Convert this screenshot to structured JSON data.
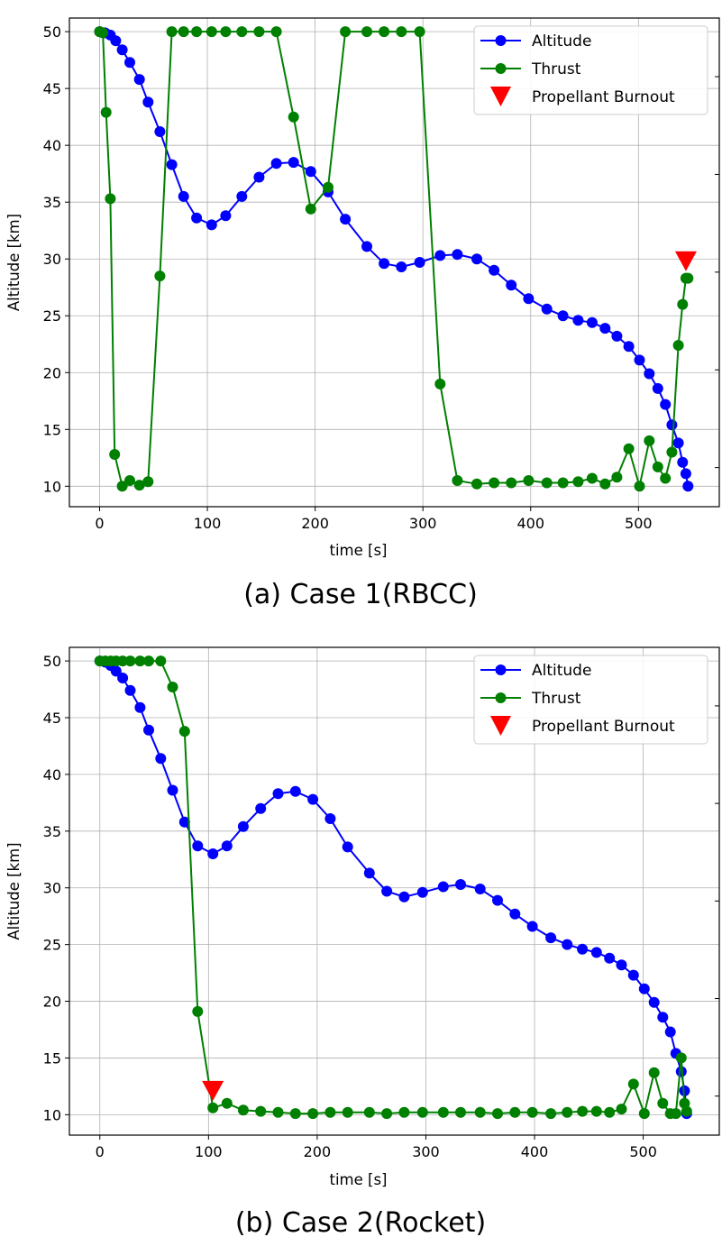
{
  "chart_data": [
    {
      "type": "line",
      "caption": "(a) Case 1(RBCC)",
      "xlabel": "time [s]",
      "ylabel": "Altitude [km]",
      "xlim": [
        -28,
        575
      ],
      "ylim": [
        8.2,
        51.2
      ],
      "xticks": [
        0,
        100,
        200,
        300,
        400,
        500
      ],
      "yticks": [
        10,
        15,
        20,
        25,
        30,
        35,
        40,
        45,
        50
      ],
      "grid": true,
      "legend_position": "top-right",
      "series": [
        {
          "name": "Altitude",
          "color": "#0000ff",
          "x": [
            0,
            5,
            10,
            15,
            21,
            28,
            37,
            45,
            56,
            67,
            78,
            90,
            104,
            117,
            132,
            148,
            164,
            180,
            196,
            212,
            228,
            248,
            264,
            280,
            297,
            316,
            332,
            350,
            366,
            382,
            398,
            415,
            430,
            444,
            457,
            469,
            480,
            491,
            501,
            510,
            518,
            525,
            531,
            537,
            541,
            544,
            546
          ],
          "y": [
            50,
            49.9,
            49.7,
            49.2,
            48.4,
            47.3,
            45.8,
            43.8,
            41.2,
            38.3,
            35.5,
            33.6,
            33.0,
            33.8,
            35.5,
            37.2,
            38.4,
            38.5,
            37.7,
            35.9,
            33.5,
            31.1,
            29.6,
            29.3,
            29.7,
            30.3,
            30.4,
            30.0,
            29.0,
            27.7,
            26.5,
            25.6,
            25.0,
            24.6,
            24.4,
            23.9,
            23.2,
            22.3,
            21.1,
            19.9,
            18.6,
            17.2,
            15.4,
            13.8,
            12.1,
            11.1,
            10.0
          ]
        },
        {
          "name": "Thrust",
          "color": "#008000",
          "x": [
            0,
            3,
            6,
            10,
            14,
            21,
            28,
            37,
            45,
            56,
            67,
            78,
            90,
            104,
            117,
            132,
            148,
            164,
            180,
            196,
            212,
            228,
            248,
            264,
            280,
            297,
            316,
            332,
            350,
            366,
            382,
            398,
            415,
            430,
            444,
            457,
            469,
            480,
            491,
            501,
            510,
            518,
            525,
            531,
            537,
            541,
            544,
            546
          ],
          "y": [
            50,
            49.9,
            42.9,
            35.3,
            12.8,
            10.0,
            10.5,
            10.1,
            10.4,
            28.5,
            50,
            50,
            50,
            50,
            50,
            50,
            50,
            50,
            42.5,
            34.4,
            36.3,
            50,
            50,
            50,
            50,
            50,
            19.0,
            10.5,
            10.2,
            10.3,
            10.3,
            10.5,
            10.3,
            10.3,
            10.4,
            10.7,
            10.2,
            10.8,
            13.3,
            10.0,
            14.0,
            11.7,
            10.7,
            13.0,
            22.4,
            26.0,
            28.3,
            28.3
          ]
        },
        {
          "name": "Propellant Burnout",
          "color": "#ff0000",
          "marker": "triangle-down",
          "x": [
            544
          ],
          "y": [
            29.8
          ]
        }
      ]
    },
    {
      "type": "line",
      "caption": "(b) Case 2(Rocket)",
      "xlabel": "time [s]",
      "ylabel": "Altitude [km]",
      "xlim": [
        -28,
        570
      ],
      "ylim": [
        8.2,
        51.2
      ],
      "xticks": [
        0,
        100,
        200,
        300,
        400,
        500
      ],
      "yticks": [
        10,
        15,
        20,
        25,
        30,
        35,
        40,
        45,
        50
      ],
      "grid": true,
      "legend_position": "top-right",
      "series": [
        {
          "name": "Altitude",
          "color": "#0000ff",
          "x": [
            0,
            5,
            10,
            15,
            21,
            28,
            37,
            45,
            56,
            67,
            78,
            90,
            104,
            117,
            132,
            148,
            164,
            180,
            196,
            212,
            228,
            248,
            264,
            280,
            297,
            316,
            332,
            350,
            366,
            382,
            398,
            415,
            430,
            444,
            457,
            469,
            480,
            491,
            501,
            510,
            518,
            525,
            530,
            535,
            538,
            540
          ],
          "y": [
            50,
            49.9,
            49.6,
            49.1,
            48.5,
            47.4,
            45.9,
            43.9,
            41.4,
            38.6,
            35.8,
            33.7,
            33.0,
            33.7,
            35.4,
            37.0,
            38.3,
            38.5,
            37.8,
            36.1,
            33.6,
            31.3,
            29.7,
            29.2,
            29.6,
            30.1,
            30.3,
            29.9,
            28.9,
            27.7,
            26.6,
            25.6,
            25.0,
            24.6,
            24.3,
            23.8,
            23.2,
            22.3,
            21.1,
            19.9,
            18.6,
            17.3,
            15.4,
            13.8,
            12.1,
            10.1
          ]
        },
        {
          "name": "Thrust",
          "color": "#008000",
          "x": [
            0,
            5,
            10,
            15,
            21,
            28,
            37,
            45,
            56,
            67,
            78,
            90,
            104,
            117,
            132,
            148,
            164,
            180,
            196,
            212,
            228,
            248,
            264,
            280,
            297,
            316,
            332,
            350,
            366,
            382,
            398,
            415,
            430,
            444,
            457,
            469,
            480,
            491,
            501,
            510,
            518,
            525,
            530,
            535,
            538,
            540
          ],
          "y": [
            50,
            50,
            50,
            50,
            50,
            50,
            50,
            50,
            50,
            47.7,
            43.8,
            19.1,
            10.6,
            11.0,
            10.4,
            10.3,
            10.2,
            10.1,
            10.1,
            10.2,
            10.2,
            10.2,
            10.1,
            10.2,
            10.2,
            10.2,
            10.2,
            10.2,
            10.1,
            10.2,
            10.2,
            10.1,
            10.2,
            10.3,
            10.3,
            10.2,
            10.5,
            12.7,
            10.1,
            13.7,
            11.0,
            10.1,
            10.1,
            15.0,
            11.0,
            10.3
          ]
        },
        {
          "name": "Propellant Burnout",
          "color": "#ff0000",
          "marker": "triangle-down",
          "x": [
            104
          ],
          "y": [
            12.1
          ]
        }
      ]
    }
  ]
}
